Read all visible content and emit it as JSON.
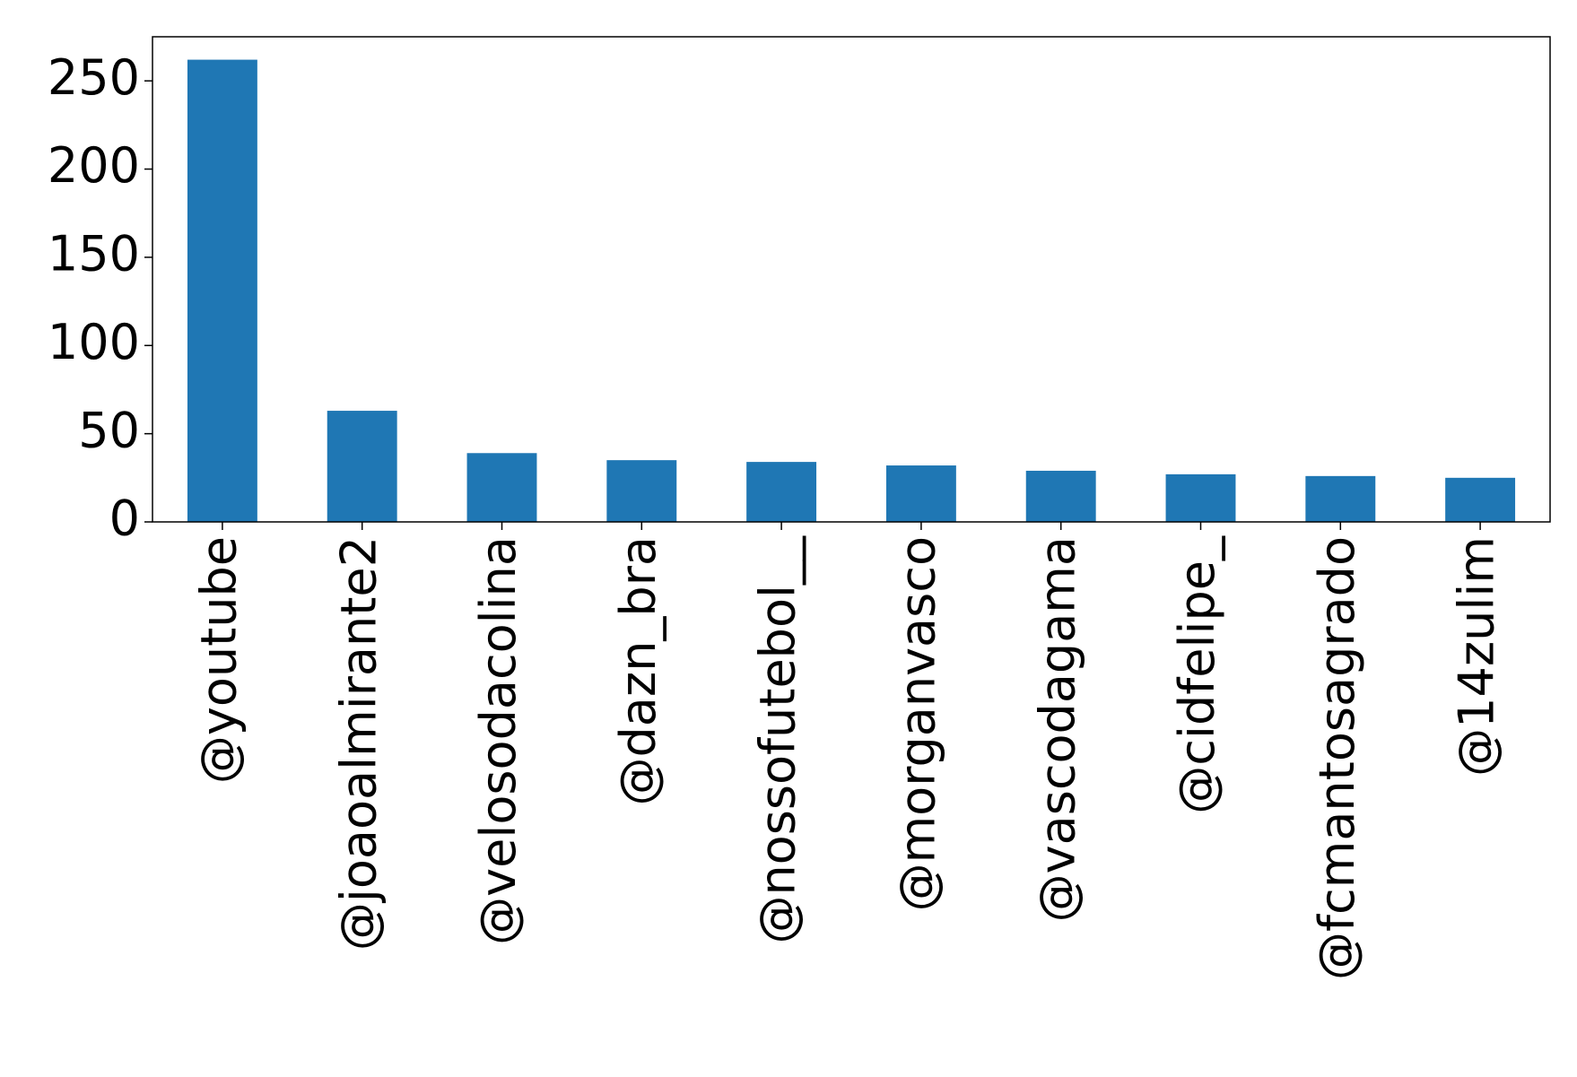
{
  "chart_data": {
    "type": "bar",
    "categories": [
      "@youtube",
      "@joaoalmirante2",
      "@velosodacolina",
      "@dazn_bra",
      "@nossofutebol__",
      "@morganvasco",
      "@vascodagama",
      "@cidfelipe_",
      "@fcmantosagrado",
      "@14zulim"
    ],
    "values": [
      262,
      63,
      39,
      35,
      34,
      32,
      29,
      27,
      26,
      25
    ],
    "color": "#1f77b4",
    "ylim": [
      0,
      275
    ],
    "yticks": [
      0,
      50,
      100,
      150,
      200,
      250
    ],
    "grid": false
  }
}
